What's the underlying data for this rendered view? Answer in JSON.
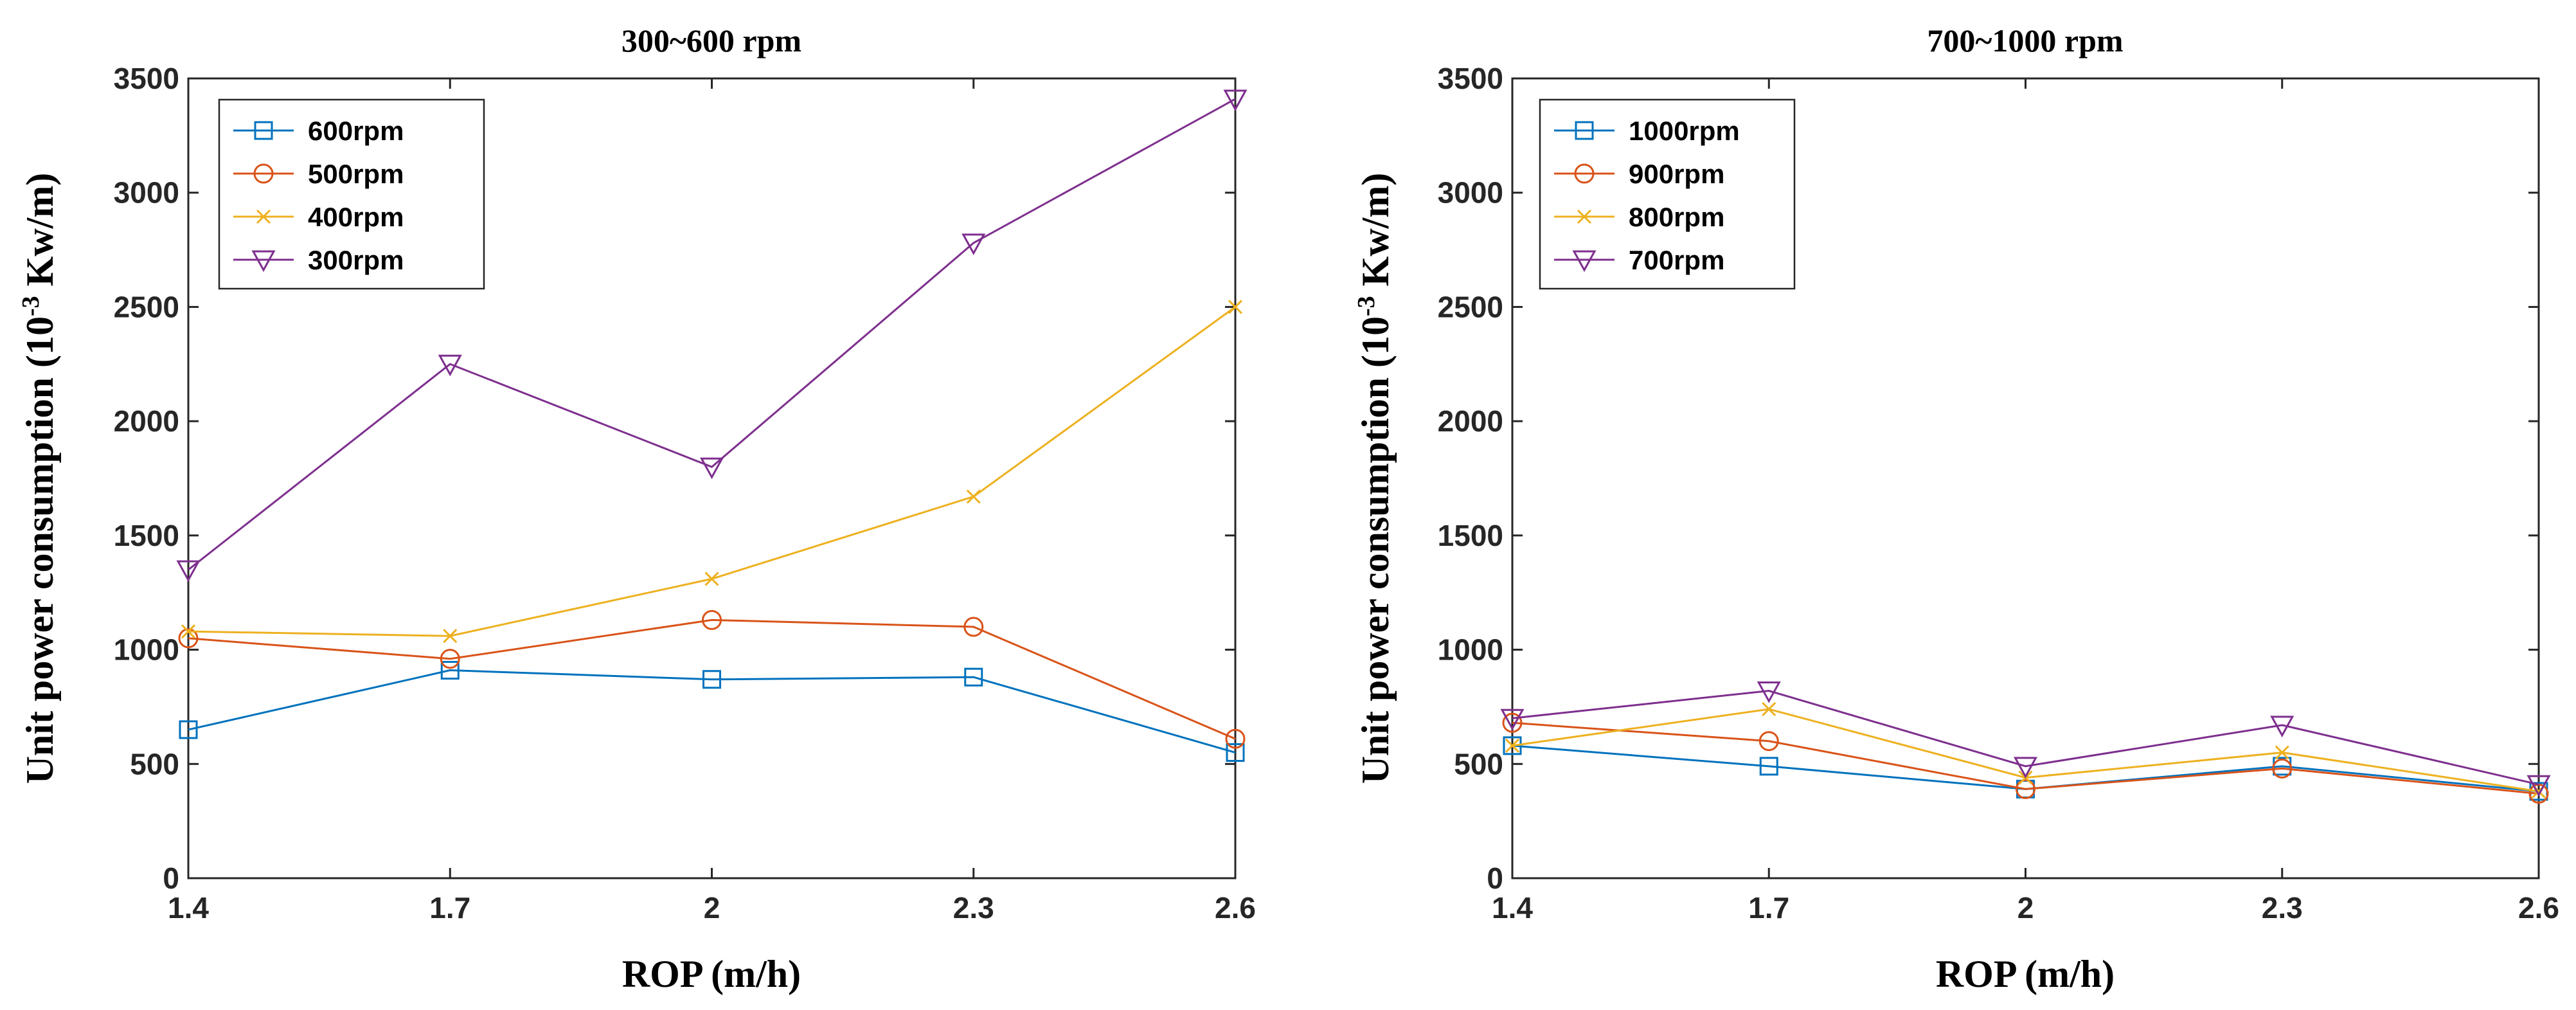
{
  "chart_data": [
    {
      "type": "line",
      "title": "300~600 rpm",
      "xlabel": "ROP (m/h)",
      "ylabel_main": "Unit power consumption  (10",
      "ylabel_exp": "-3",
      "ylabel_unit": " Kw/m)",
      "x": [
        1.4,
        1.7,
        2,
        2.3,
        2.6
      ],
      "x_ticks": [
        "1.4",
        "1.7",
        "2",
        "2.3",
        "2.6"
      ],
      "xlim": [
        1.4,
        2.6
      ],
      "ylim": [
        0,
        3500
      ],
      "y_ticks": [
        0,
        500,
        1000,
        1500,
        2000,
        2500,
        3000,
        3500
      ],
      "legend_position": "top-left",
      "series": [
        {
          "name": "600rpm",
          "marker": "square",
          "color": "#0072BD",
          "values": [
            650,
            910,
            870,
            880,
            550
          ]
        },
        {
          "name": "500rpm",
          "marker": "circle",
          "color": "#D95319",
          "values": [
            1050,
            960,
            1130,
            1100,
            610
          ]
        },
        {
          "name": "400rpm",
          "marker": "x",
          "color": "#EDB120",
          "values": [
            1080,
            1060,
            1310,
            1670,
            2500
          ]
        },
        {
          "name": "300rpm",
          "marker": "triangle-down",
          "color": "#7E2F8E",
          "values": [
            1350,
            2250,
            1800,
            2780,
            3410
          ]
        }
      ]
    },
    {
      "type": "line",
      "title": "700~1000 rpm",
      "xlabel": "ROP (m/h)",
      "ylabel_main": "Unit power consumption  (10",
      "ylabel_exp": "-3",
      "ylabel_unit": " Kw/m)",
      "x": [
        1.4,
        1.7,
        2,
        2.3,
        2.6
      ],
      "x_ticks": [
        "1.4",
        "1.7",
        "2",
        "2.3",
        "2.6"
      ],
      "xlim": [
        1.4,
        2.6
      ],
      "ylim": [
        0,
        3500
      ],
      "y_ticks": [
        0,
        500,
        1000,
        1500,
        2000,
        2500,
        3000,
        3500
      ],
      "legend_position": "top-left",
      "series": [
        {
          "name": "1000rpm",
          "marker": "square",
          "color": "#0072BD",
          "values": [
            580,
            490,
            390,
            490,
            380
          ]
        },
        {
          "name": "900rpm",
          "marker": "circle",
          "color": "#D95319",
          "values": [
            680,
            600,
            390,
            480,
            370
          ]
        },
        {
          "name": "800rpm",
          "marker": "x",
          "color": "#EDB120",
          "values": [
            580,
            740,
            440,
            550,
            380
          ]
        },
        {
          "name": "700rpm",
          "marker": "triangle-down",
          "color": "#7E2F8E",
          "values": [
            700,
            820,
            490,
            670,
            410
          ]
        }
      ]
    }
  ]
}
